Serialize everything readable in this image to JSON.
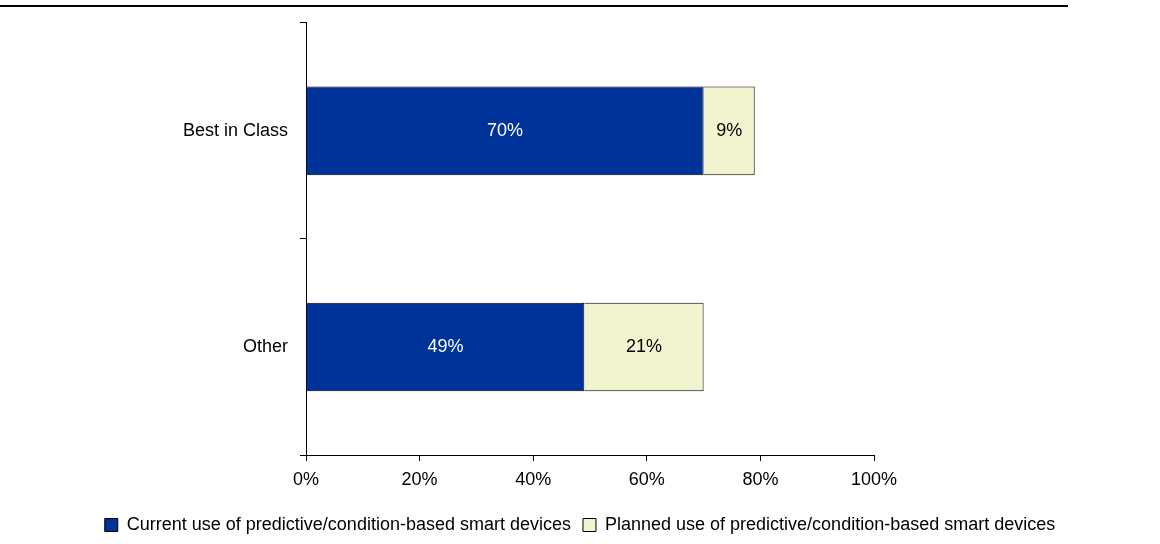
{
  "chart_data": {
    "type": "bar",
    "orientation": "horizontal",
    "stacked": true,
    "categories": [
      "Best in Class",
      "Other"
    ],
    "series": [
      {
        "name": "Current use of predictive/condition-based smart devices",
        "color": "#003399",
        "values": [
          70,
          49
        ],
        "value_labels": [
          "70%",
          "49%"
        ]
      },
      {
        "name": "Planned use of predictive/condition-based smart devices",
        "color": "#f2f4cf",
        "values": [
          9,
          21
        ],
        "value_labels": [
          "9%",
          "21%"
        ]
      }
    ],
    "xlim": [
      0,
      100
    ],
    "xticks": [
      {
        "value": 0,
        "label": "0%"
      },
      {
        "value": 20,
        "label": "20%"
      },
      {
        "value": 40,
        "label": "40%"
      },
      {
        "value": 60,
        "label": "60%"
      },
      {
        "value": 80,
        "label": "80%"
      },
      {
        "value": 100,
        "label": "100%"
      }
    ],
    "grid": false,
    "legend": "bottom"
  }
}
